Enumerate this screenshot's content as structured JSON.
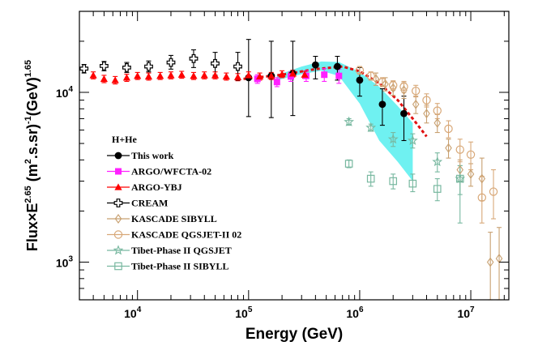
{
  "chart_data": {
    "type": "scatter",
    "title": "",
    "xlabel": "Energy (GeV)",
    "ylabel_parts": [
      "Flux×E",
      "2.65",
      " (m",
      "2",
      ".s.sr)",
      "-1",
      "(GeV)",
      "1.65"
    ],
    "xscale": "log",
    "yscale": "log",
    "xlim": [
      3000,
      22000000
    ],
    "ylim": [
      600,
      30000
    ],
    "x_ticks": [
      {
        "value": 10000,
        "base": "10",
        "exp": "4"
      },
      {
        "value": 100000,
        "base": "10",
        "exp": "5"
      },
      {
        "value": 1000000,
        "base": "10",
        "exp": "6"
      },
      {
        "value": 10000000,
        "base": "10",
        "exp": "7"
      }
    ],
    "y_ticks": [
      {
        "value": 1000,
        "base": "10",
        "exp": "3"
      },
      {
        "value": 10000,
        "base": "10",
        "exp": "4"
      }
    ],
    "legend": {
      "title": "H+He",
      "placement": "left-center",
      "entries": [
        {
          "label": "This work",
          "series": "this_work"
        },
        {
          "label": "ARGO/WFCTA-02",
          "series": "argo_wfcta"
        },
        {
          "label": "ARGO-YBJ",
          "series": "argo_ybj"
        },
        {
          "label": "CREAM",
          "series": "cream"
        },
        {
          "label": "KASCADE SIBYLL",
          "series": "kascade_sibyll"
        },
        {
          "label": "KASCADE QGSJET-II 02",
          "series": "kascade_qgsjet"
        },
        {
          "label": "Tibet-Phase II QGSJET",
          "series": "tibet_qgsjet"
        },
        {
          "label": "Tibet-Phase II SIBYLL",
          "series": "tibet_sibyll"
        }
      ]
    },
    "band": {
      "name": "systematic band",
      "color": "#5ff0f0",
      "upper": [
        [
          180000,
          12600
        ],
        [
          300000,
          14200
        ],
        [
          450000,
          15200
        ],
        [
          650000,
          15100
        ],
        [
          1000000,
          13200
        ],
        [
          1500000,
          10800
        ],
        [
          2200000,
          8300
        ],
        [
          3000000,
          6600
        ]
      ],
      "lower": [
        [
          180000,
          11800
        ],
        [
          300000,
          12800
        ],
        [
          450000,
          13400
        ],
        [
          650000,
          12500
        ],
        [
          1000000,
          8600
        ],
        [
          1500000,
          5200
        ],
        [
          2200000,
          3900
        ],
        [
          3000000,
          3000
        ]
      ]
    },
    "fit_line": {
      "name": "fit",
      "color": "#e01010",
      "points": [
        [
          90000,
          12000
        ],
        [
          200000,
          12700
        ],
        [
          400000,
          13700
        ],
        [
          700000,
          14200
        ],
        [
          1000000,
          13300
        ],
        [
          1500000,
          11300
        ],
        [
          2200000,
          9000
        ],
        [
          3000000,
          7000
        ],
        [
          4000000,
          5500
        ]
      ]
    },
    "series": [
      {
        "name": "This work",
        "key": "this_work",
        "color": "#000000",
        "marker": "filled-circle",
        "points": [
          [
            100000,
            12200
          ],
          [
            160000,
            12500
          ],
          [
            250000,
            12900
          ],
          [
            400000,
            14500
          ],
          [
            630000,
            14200
          ],
          [
            1000000,
            11800
          ],
          [
            1600000,
            8500
          ],
          [
            2500000,
            7500
          ]
        ],
        "errors": [
          [
            7200,
            20500
          ],
          [
            7100,
            20000
          ],
          [
            7300,
            20000
          ],
          [
            12000,
            16300
          ],
          [
            11800,
            16300
          ],
          [
            9500,
            14000
          ],
          [
            6400,
            10500
          ],
          [
            5200,
            9500
          ]
        ]
      },
      {
        "name": "ARGO/WFCTA-02",
        "key": "argo_wfcta",
        "color": "#ff20ff",
        "marker": "filled-square",
        "points": [
          [
            120000,
            12000
          ],
          [
            180000,
            11500
          ],
          [
            240000,
            12400
          ],
          [
            330000,
            12500
          ],
          [
            480000,
            12700
          ],
          [
            650000,
            12500
          ]
        ],
        "errors": [
          [
            11300,
            12700
          ],
          [
            10800,
            12200
          ],
          [
            11600,
            13200
          ],
          [
            11600,
            13400
          ],
          [
            11600,
            13800
          ],
          [
            11300,
            13700
          ]
        ]
      },
      {
        "name": "ARGO-YBJ",
        "key": "argo_ybj",
        "color": "#ff0000",
        "marker": "filled-triangle",
        "points": [
          [
            4000,
            12600
          ],
          [
            5000,
            12000
          ],
          [
            6300,
            11800
          ],
          [
            8000,
            12200
          ],
          [
            10000,
            12500
          ],
          [
            12600,
            12400
          ],
          [
            16000,
            12500
          ],
          [
            20000,
            12600
          ],
          [
            25000,
            12700
          ],
          [
            32000,
            12500
          ],
          [
            40000,
            12600
          ],
          [
            50000,
            12600
          ],
          [
            63000,
            12400
          ],
          [
            80000,
            12300
          ],
          [
            100000,
            12600
          ],
          [
            126000,
            12400
          ],
          [
            160000,
            12500
          ],
          [
            200000,
            12800
          ],
          [
            250000,
            12900
          ],
          [
            320000,
            12700
          ]
        ],
        "errors": [
          [
            12000,
            13200
          ],
          [
            11400,
            12600
          ],
          [
            11200,
            12400
          ],
          [
            11600,
            12800
          ],
          [
            11900,
            13100
          ],
          [
            11800,
            13000
          ],
          [
            11900,
            13100
          ],
          [
            12000,
            13200
          ],
          [
            12100,
            13300
          ],
          [
            11900,
            13100
          ],
          [
            12000,
            13200
          ],
          [
            12000,
            13200
          ],
          [
            11800,
            13000
          ],
          [
            11700,
            12900
          ],
          [
            12000,
            13200
          ],
          [
            11800,
            13000
          ],
          [
            11900,
            13100
          ],
          [
            12200,
            13400
          ],
          [
            12300,
            13500
          ],
          [
            12100,
            13300
          ]
        ]
      },
      {
        "name": "CREAM",
        "key": "cream",
        "color": "#000000",
        "marker": "open-cross",
        "points": [
          [
            3300,
            13800
          ],
          [
            5000,
            14300
          ],
          [
            8000,
            14000
          ],
          [
            12600,
            14200
          ],
          [
            20000,
            15000
          ],
          [
            32000,
            15800
          ],
          [
            50000,
            14800
          ],
          [
            80000,
            14200
          ]
        ],
        "errors": [
          [
            13000,
            14600
          ],
          [
            13400,
            15200
          ],
          [
            13100,
            15000
          ],
          [
            13200,
            15300
          ],
          [
            13700,
            16500
          ],
          [
            14000,
            17800
          ],
          [
            12600,
            17200
          ],
          [
            11800,
            17200
          ]
        ]
      },
      {
        "name": "KASCADE SIBYLL",
        "key": "kascade_sibyll",
        "color": "#c8a070",
        "marker": "open-diamond",
        "points": [
          [
            1400000,
            12000
          ],
          [
            1700000,
            11200
          ],
          [
            2000000,
            10600
          ],
          [
            2500000,
            10300
          ],
          [
            3200000,
            8500
          ],
          [
            4000000,
            7500
          ],
          [
            5000000,
            6600
          ],
          [
            6300000,
            4700
          ],
          [
            8000000,
            3500
          ],
          [
            10000000,
            3300
          ],
          [
            12600000,
            3100
          ],
          [
            15000000,
            1000
          ],
          [
            18000000,
            1050
          ]
        ],
        "errors": [
          [
            11000,
            13000
          ],
          [
            10200,
            12200
          ],
          [
            9600,
            11600
          ],
          [
            9200,
            11400
          ],
          [
            7500,
            9500
          ],
          [
            6600,
            8400
          ],
          [
            5800,
            7400
          ],
          [
            4100,
            5300
          ],
          [
            3000,
            4000
          ],
          [
            2800,
            3800
          ],
          [
            2300,
            4100
          ],
          [
            600,
            1500
          ],
          [
            600,
            1600
          ]
        ]
      },
      {
        "name": "KASCADE QGSJET-II 02",
        "key": "kascade_qgsjet",
        "color": "#d8a878",
        "marker": "open-circle",
        "points": [
          [
            1000000,
            13500
          ],
          [
            1260000,
            12500
          ],
          [
            1600000,
            11500
          ],
          [
            2000000,
            11000
          ],
          [
            2500000,
            10800
          ],
          [
            3200000,
            10200
          ],
          [
            4000000,
            9000
          ],
          [
            5000000,
            7800
          ],
          [
            6300000,
            6100
          ],
          [
            8000000,
            4600
          ],
          [
            10000000,
            4300
          ],
          [
            12600000,
            2400
          ],
          [
            16000000,
            2600
          ]
        ],
        "errors": [
          [
            12800,
            14200
          ],
          [
            11800,
            13200
          ],
          [
            10800,
            12200
          ],
          [
            10300,
            11700
          ],
          [
            10000,
            11600
          ],
          [
            9400,
            11000
          ],
          [
            8200,
            9800
          ],
          [
            7000,
            8600
          ],
          [
            5400,
            6800
          ],
          [
            3900,
            5300
          ],
          [
            3500,
            5100
          ],
          [
            1700,
            3200
          ],
          [
            1800,
            3500
          ]
        ]
      },
      {
        "name": "Tibet-Phase II QGSJET",
        "key": "tibet_qgsjet",
        "color": "#78b8a0",
        "marker": "open-star",
        "points": [
          [
            800000,
            6700
          ],
          [
            1260000,
            6200
          ],
          [
            2000000,
            5300
          ],
          [
            3000000,
            5200
          ],
          [
            5000000,
            3900
          ],
          [
            8000000,
            3100
          ]
        ],
        "errors": [
          [
            6400,
            7000
          ],
          [
            5900,
            6500
          ],
          [
            4800,
            5800
          ],
          [
            4700,
            5700
          ],
          [
            3400,
            4400
          ],
          [
            2500,
            3700
          ]
        ]
      },
      {
        "name": "Tibet-Phase II SIBYLL",
        "key": "tibet_sibyll",
        "color": "#78b8a0",
        "marker": "open-square",
        "points": [
          [
            800000,
            3800
          ],
          [
            1260000,
            3100
          ],
          [
            2000000,
            3000
          ],
          [
            3000000,
            2900
          ],
          [
            5000000,
            2700
          ],
          [
            8000000,
            3100
          ]
        ],
        "errors": [
          [
            3600,
            4000
          ],
          [
            2800,
            3400
          ],
          [
            2700,
            3300
          ],
          [
            2600,
            3300
          ],
          [
            2300,
            3100
          ],
          [
            1700,
            3700
          ]
        ]
      }
    ]
  }
}
